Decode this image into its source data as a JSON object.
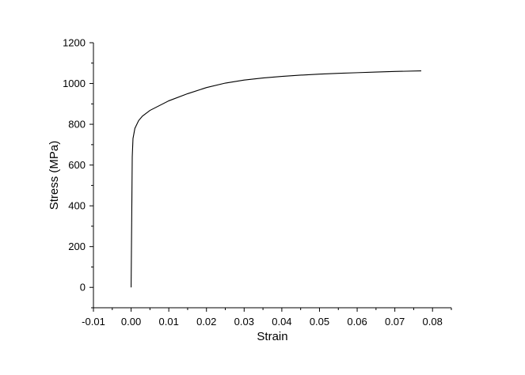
{
  "chart_data": {
    "type": "line",
    "title": "",
    "xlabel": "Strain",
    "ylabel": "Stress (MPa)",
    "xlim": [
      -0.01,
      0.085
    ],
    "ylim": [
      -100,
      1200
    ],
    "x_ticks": [
      -0.01,
      0.0,
      0.01,
      0.02,
      0.03,
      0.04,
      0.05,
      0.06,
      0.07,
      0.08
    ],
    "x_tick_labels": [
      "-0.01",
      "0.00",
      "0.01",
      "0.02",
      "0.03",
      "0.04",
      "0.05",
      "0.06",
      "0.07",
      "0.08"
    ],
    "y_ticks": [
      0,
      200,
      400,
      600,
      800,
      1000,
      1200
    ],
    "y_tick_labels": [
      "0",
      "200",
      "400",
      "600",
      "800",
      "1000",
      "1200"
    ],
    "grid": false,
    "legend": "none",
    "line_color": "#000000",
    "series": [
      {
        "x": [
          0.0,
          0.0003,
          0.0005,
          0.001,
          0.002,
          0.003,
          0.005,
          0.01,
          0.015,
          0.02,
          0.025,
          0.03,
          0.035,
          0.04,
          0.045,
          0.05,
          0.055,
          0.06,
          0.065,
          0.07,
          0.077
        ],
        "y": [
          0,
          640,
          730,
          780,
          818,
          840,
          868,
          915,
          950,
          980,
          1002,
          1017,
          1027,
          1035,
          1041,
          1046,
          1050,
          1053,
          1056,
          1059,
          1062
        ]
      }
    ]
  }
}
